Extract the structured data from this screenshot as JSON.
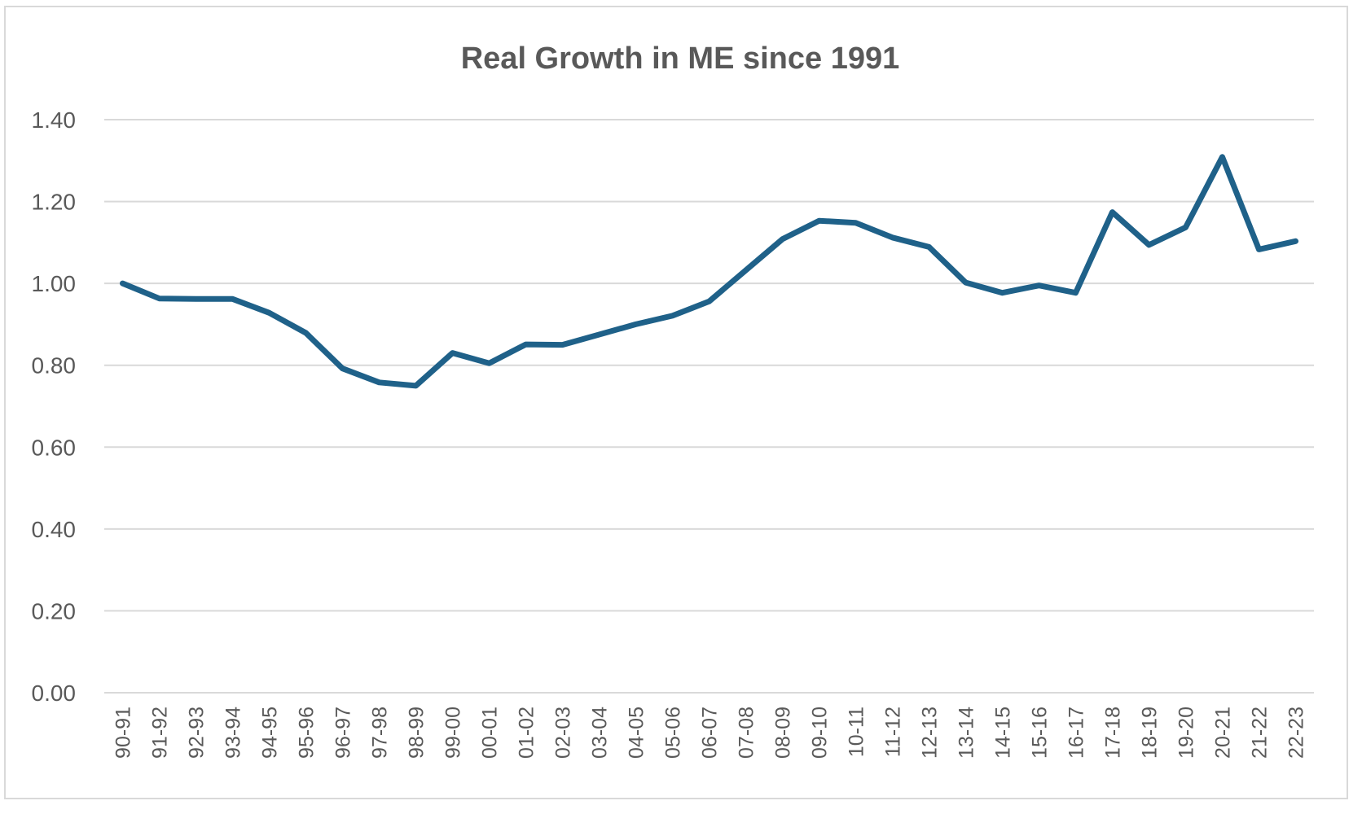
{
  "chart_data": {
    "type": "line",
    "title": "Real Growth in ME since 1991",
    "xlabel": "",
    "ylabel": "",
    "ylim": [
      0,
      1.4
    ],
    "ytick_step": 0.2,
    "ytick_labels": [
      "0.00",
      "0.20",
      "0.40",
      "0.60",
      "0.80",
      "1.00",
      "1.20",
      "1.40"
    ],
    "grid": true,
    "legend": "none",
    "categories": [
      "90-91",
      "91-92",
      "92-93",
      "93-94",
      "94-95",
      "95-96",
      "96-97",
      "97-98",
      "98-99",
      "99-00",
      "00-01",
      "01-02",
      "02-03",
      "03-04",
      "04-05",
      "05-06",
      "06-07",
      "07-08",
      "08-09",
      "09-10",
      "10-11",
      "11-12",
      "12-13",
      "13-14",
      "14-15",
      "15-16",
      "16-17",
      "17-18",
      "18-19",
      "19-20",
      "20-21",
      "21-22",
      "22-23"
    ],
    "series": [
      {
        "name": "Real Growth in ME",
        "color": "#1f6189",
        "values": [
          1.0,
          0.963,
          0.962,
          0.962,
          0.928,
          0.879,
          0.792,
          0.758,
          0.75,
          0.83,
          0.805,
          0.851,
          0.85,
          0.875,
          0.9,
          0.921,
          0.956,
          1.032,
          1.108,
          1.153,
          1.148,
          1.112,
          1.089,
          1.002,
          0.977,
          0.995,
          0.977,
          1.174,
          1.094,
          1.137,
          1.309,
          1.083,
          1.103
        ]
      }
    ]
  }
}
